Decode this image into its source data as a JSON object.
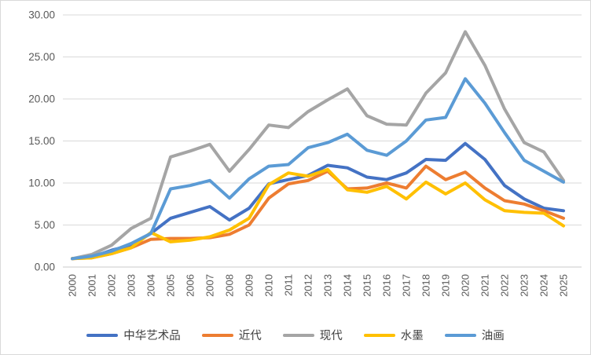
{
  "chart_data": {
    "type": "line",
    "title": "",
    "x": [
      "2000",
      "2001",
      "2002",
      "2003",
      "2004",
      "2005",
      "2006",
      "2007",
      "2008",
      "2009",
      "2010",
      "2011",
      "2012",
      "2013",
      "2014",
      "2015",
      "2016",
      "2017",
      "2018",
      "2019",
      "2020",
      "2021",
      "2022",
      "2023",
      "2024",
      "2025"
    ],
    "series": [
      {
        "name": "中华艺术品",
        "color": "#4472C4",
        "values": [
          1.0,
          1.2,
          2.0,
          2.6,
          4.0,
          5.8,
          6.5,
          7.2,
          5.6,
          7.0,
          9.9,
          10.4,
          10.9,
          12.1,
          11.8,
          10.7,
          10.4,
          11.2,
          12.8,
          12.7,
          14.7,
          12.8,
          9.7,
          8.1,
          7.0,
          6.7
        ]
      },
      {
        "name": "近代",
        "color": "#ED7D31",
        "values": [
          1.0,
          1.1,
          1.6,
          2.3,
          3.3,
          3.4,
          3.4,
          3.5,
          3.9,
          5.0,
          8.2,
          9.9,
          10.3,
          11.4,
          9.3,
          9.4,
          10.0,
          9.4,
          12.0,
          10.4,
          11.3,
          9.4,
          7.9,
          7.5,
          6.7,
          5.8
        ]
      },
      {
        "name": "现代",
        "color": "#A5A5A5",
        "values": [
          1.0,
          1.5,
          2.6,
          4.6,
          5.8,
          13.1,
          13.8,
          14.6,
          11.4,
          14.0,
          16.9,
          16.6,
          18.5,
          19.9,
          21.2,
          18.0,
          17.0,
          16.9,
          20.7,
          23.1,
          28.0,
          24.0,
          18.8,
          14.8,
          13.7,
          10.3
        ]
      },
      {
        "name": "水墨",
        "color": "#FFC000",
        "values": [
          1.0,
          1.1,
          1.6,
          2.3,
          4.1,
          3.0,
          3.2,
          3.6,
          4.4,
          5.8,
          9.8,
          11.2,
          10.8,
          11.6,
          9.2,
          8.9,
          9.6,
          8.1,
          10.1,
          8.7,
          10.0,
          8.0,
          6.7,
          6.5,
          6.4,
          4.9
        ]
      },
      {
        "name": "油画",
        "color": "#5B9BD5",
        "values": [
          1.0,
          1.3,
          1.9,
          2.8,
          4.0,
          9.3,
          9.7,
          10.3,
          8.2,
          10.5,
          12.0,
          12.2,
          14.2,
          14.8,
          15.8,
          13.9,
          13.3,
          15.0,
          17.5,
          17.8,
          22.4,
          19.5,
          16.0,
          12.7,
          11.4,
          10.1
        ]
      }
    ],
    "ylim": [
      0,
      30
    ],
    "ytick_step": 5,
    "y_tick_labels": [
      "0.00",
      "5.00",
      "10.00",
      "15.00",
      "20.00",
      "25.00",
      "30.00"
    ],
    "xlabel": "",
    "ylabel": "",
    "grid": "horizontal",
    "legend_position": "bottom",
    "x_label_rotation_deg": 90
  }
}
